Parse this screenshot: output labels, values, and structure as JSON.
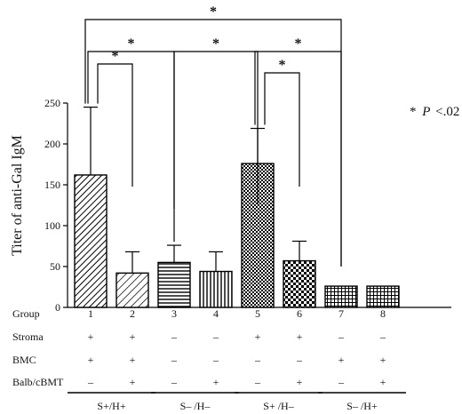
{
  "chart_data": {
    "type": "bar",
    "title": "",
    "xlabel": "",
    "ylabel": "Titer of anti-Gal IgM",
    "ylim": [
      0,
      250
    ],
    "yticks": [
      "0",
      "50",
      "100",
      "150",
      "200",
      "250"
    ],
    "categories": [
      "1",
      "2",
      "3",
      "4",
      "5",
      "6",
      "7",
      "8"
    ],
    "values": [
      162,
      42,
      55,
      44,
      176,
      57,
      26,
      26
    ],
    "errors": [
      83,
      26,
      21,
      24,
      43,
      24,
      0,
      0
    ],
    "patterns": [
      "diag-dense",
      "diag-sparse",
      "hstripe",
      "vstripe",
      "crosshatch-dense",
      "crosshatch",
      "grid",
      "grid"
    ],
    "significance": {
      "marker": "*",
      "note_star": "*",
      "note_p": "P",
      "note_rest": "<.02",
      "brackets": [
        {
          "from": 1,
          "to": 2,
          "label": "*"
        },
        {
          "from": 1,
          "to": 3,
          "label": "*"
        },
        {
          "from": 3,
          "to": 5,
          "label": "*"
        },
        {
          "from": 5,
          "to": 6,
          "label": "*"
        },
        {
          "from": 5,
          "to": 7,
          "label": "*"
        },
        {
          "from": 1,
          "to": 7,
          "label": "*"
        }
      ]
    },
    "table": {
      "rows": [
        {
          "label": "Group",
          "cells": [
            "1",
            "2",
            "3",
            "4",
            "5",
            "6",
            "7",
            "8"
          ]
        },
        {
          "label": "Stroma",
          "cells": [
            "+",
            "+",
            "–",
            "–",
            "+",
            "+",
            "–",
            "–"
          ]
        },
        {
          "label": "BMC",
          "cells": [
            "+",
            "+",
            "–",
            "–",
            "–",
            "–",
            "+",
            "+"
          ]
        },
        {
          "label": "Balb/cBMT",
          "cells": [
            "–",
            "+",
            "–",
            "+",
            "–",
            "+",
            "–",
            "+"
          ]
        }
      ],
      "groups": [
        {
          "label": "S+/H+",
          "cols": [
            1,
            2
          ]
        },
        {
          "label": "S– /H–",
          "cols": [
            3,
            4
          ]
        },
        {
          "label": "S+ /H–",
          "cols": [
            5,
            6
          ]
        },
        {
          "label": "S– /H+",
          "cols": [
            7,
            8
          ]
        }
      ]
    }
  }
}
